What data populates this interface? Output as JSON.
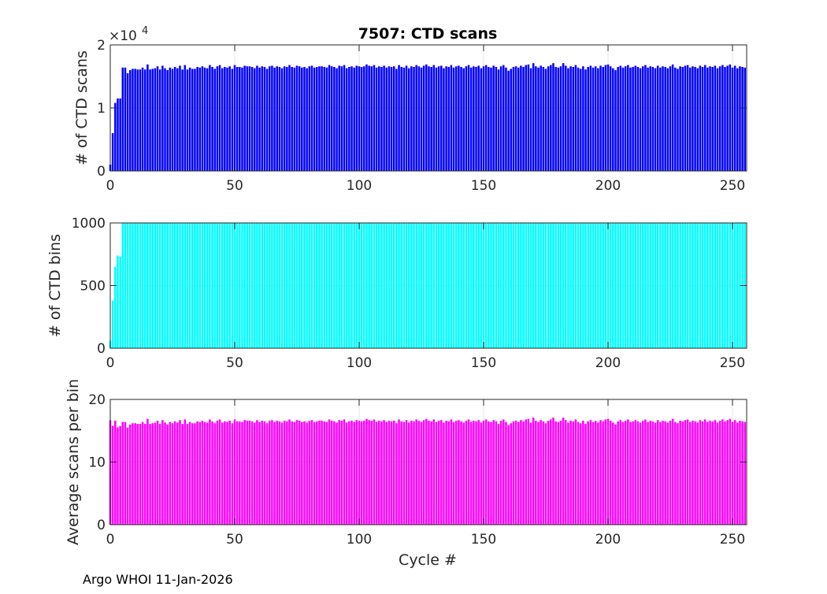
{
  "chart_data": {
    "type": "bar",
    "title": "7507: CTD scans",
    "xlabel": "Cycle #",
    "footer": "Argo WHOI 11-Jan-2026",
    "xlim": [
      -1,
      256
    ],
    "xticks": [
      "0",
      "50",
      "100",
      "150",
      "200",
      "250"
    ],
    "xtick_values": [
      0,
      50,
      100,
      150,
      200,
      250
    ],
    "panels": [
      {
        "ylabel": "# of CTD scans",
        "ylim": [
          0,
          20000
        ],
        "ytick_values": [
          0,
          10000,
          20000
        ],
        "yticks": [
          "0",
          "1",
          "2"
        ],
        "exponent_label": "×10",
        "exponent_power": "4",
        "color": "#0000ff",
        "series": "scans"
      },
      {
        "ylabel": "# of CTD bins",
        "ylim": [
          0,
          1000
        ],
        "ytick_values": [
          0,
          500,
          1000
        ],
        "yticks": [
          "0",
          "500",
          "1000"
        ],
        "color": "#00ffff",
        "series": "bins"
      },
      {
        "ylabel": "Average scans per bin",
        "ylim": [
          0,
          20
        ],
        "ytick_values": [
          0,
          10,
          20
        ],
        "yticks": [
          "0",
          "10",
          "20"
        ],
        "color": "#ff00ff",
        "series": "avg"
      }
    ],
    "cycles_start": 0,
    "bins_first": [
      60,
      380,
      650,
      740,
      730
    ],
    "bins_rest_value": 1000,
    "avg_definition": "scans / bins",
    "scans": [
      1000,
      6000,
      10800,
      11500,
      11500,
      16400,
      16400,
      15500,
      16000,
      16200,
      16200,
      16100,
      16100,
      16400,
      16100,
      16900,
      16100,
      16200,
      16300,
      16600,
      16100,
      16700,
      16300,
      16000,
      16400,
      16200,
      16500,
      16300,
      16700,
      16100,
      16800,
      16100,
      16400,
      16200,
      16200,
      16500,
      16400,
      16600,
      16400,
      16300,
      16800,
      16500,
      16200,
      16600,
      16800,
      16300,
      16500,
      16400,
      16600,
      16200,
      16800,
      16500,
      16500,
      16400,
      16700,
      16600,
      16600,
      16500,
      16300,
      16700,
      16400,
      16600,
      16500,
      16200,
      16600,
      16700,
      16400,
      16600,
      16500,
      16300,
      16600,
      16500,
      16800,
      16500,
      16400,
      16700,
      16600,
      16400,
      16500,
      16300,
      16600,
      16700,
      16400,
      16500,
      16600,
      16600,
      16500,
      16400,
      16800,
      16600,
      16500,
      16300,
      16700,
      16600,
      16800,
      16300,
      16500,
      16600,
      16400,
      16700,
      16600,
      16500,
      16600,
      16900,
      16700,
      16600,
      16800,
      16400,
      16600,
      16500,
      16700,
      16400,
      16600,
      16500,
      16600,
      16200,
      16800,
      16500,
      16400,
      16700,
      16300,
      16600,
      16500,
      16800,
      16600,
      16400,
      16700,
      16900,
      16600,
      16500,
      16800,
      16400,
      16600,
      16700,
      16300,
      16600,
      16500,
      16800,
      16400,
      16600,
      16700,
      16500,
      16300,
      16600,
      16800,
      16400,
      16600,
      16500,
      16700,
      16300,
      16600,
      16800,
      16500,
      16400,
      16700,
      16500,
      16100,
      16600,
      16800,
      16400,
      15900,
      16200,
      16500,
      16600,
      16400,
      16700,
      16500,
      16800,
      16900,
      16300,
      17100,
      16600,
      16400,
      16700,
      16500,
      16200,
      16600,
      16800,
      17100,
      16500,
      16400,
      16600,
      17100,
      16700,
      16300,
      16600,
      16500,
      16800,
      16400,
      16200,
      16600,
      16100,
      16500,
      16700,
      16400,
      16600,
      16300,
      16700,
      16500,
      16800,
      16900,
      16600,
      16300,
      16000,
      16500,
      16700,
      16400,
      16600,
      16800,
      16400,
      16500,
      16700,
      16500,
      16300,
      16600,
      16800,
      16400,
      16600,
      16500,
      16300,
      16700,
      16400,
      16600,
      16500,
      16300,
      16600,
      16900,
      16400,
      16200,
      16600,
      16500,
      16700,
      16800,
      16400,
      16600,
      16500,
      16300,
      16700,
      16500,
      16800,
      16400,
      16600,
      16500,
      16700,
      16300,
      16600,
      16800,
      16500,
      16700,
      16900,
      16400,
      16700,
      16300,
      16600,
      16500,
      16400
    ]
  }
}
